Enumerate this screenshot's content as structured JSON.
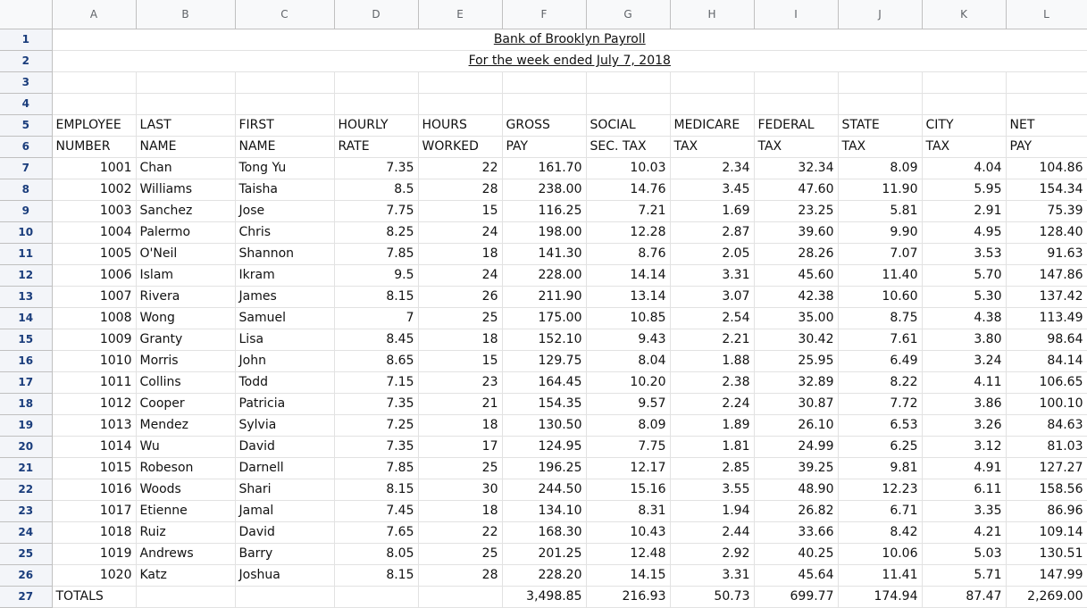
{
  "columns": [
    "A",
    "B",
    "C",
    "D",
    "E",
    "F",
    "G",
    "H",
    "I",
    "J",
    "K",
    "L"
  ],
  "rowNumbers": [
    "1",
    "2",
    "3",
    "4",
    "5",
    "6",
    "7",
    "8",
    "9",
    "10",
    "11",
    "12",
    "13",
    "14",
    "15",
    "16",
    "17",
    "18",
    "19",
    "20",
    "21",
    "22",
    "23",
    "24",
    "25",
    "26",
    "27"
  ],
  "title": "Bank of Brooklyn Payroll",
  "subtitle": "For the week  ended July  7, 2018",
  "headers": {
    "line1": [
      "EMPLOYEE",
      "LAST",
      "FIRST",
      "HOURLY",
      "HOURS",
      "GROSS",
      "SOCIAL",
      "MEDICARE",
      "FEDERAL",
      "STATE",
      "CITY",
      "NET"
    ],
    "line2": [
      "NUMBER",
      "NAME",
      "NAME",
      "RATE",
      "WORKED",
      "PAY",
      "SEC. TAX",
      "TAX",
      "TAX",
      "TAX",
      "TAX",
      "PAY"
    ]
  },
  "employees": [
    [
      "1001",
      "Chan",
      "Tong Yu",
      "7.35",
      "22",
      "161.70",
      "10.03",
      "2.34",
      "32.34",
      "8.09",
      "4.04",
      "104.86"
    ],
    [
      "1002",
      "Williams",
      "Taisha",
      "8.5",
      "28",
      "238.00",
      "14.76",
      "3.45",
      "47.60",
      "11.90",
      "5.95",
      "154.34"
    ],
    [
      "1003",
      "Sanchez",
      "Jose",
      "7.75",
      "15",
      "116.25",
      "7.21",
      "1.69",
      "23.25",
      "5.81",
      "2.91",
      "75.39"
    ],
    [
      "1004",
      "Palermo",
      "Chris",
      "8.25",
      "24",
      "198.00",
      "12.28",
      "2.87",
      "39.60",
      "9.90",
      "4.95",
      "128.40"
    ],
    [
      "1005",
      "O'Neil",
      "Shannon",
      "7.85",
      "18",
      "141.30",
      "8.76",
      "2.05",
      "28.26",
      "7.07",
      "3.53",
      "91.63"
    ],
    [
      "1006",
      "Islam",
      "Ikram",
      "9.5",
      "24",
      "228.00",
      "14.14",
      "3.31",
      "45.60",
      "11.40",
      "5.70",
      "147.86"
    ],
    [
      "1007",
      "Rivera",
      "James",
      "8.15",
      "26",
      "211.90",
      "13.14",
      "3.07",
      "42.38",
      "10.60",
      "5.30",
      "137.42"
    ],
    [
      "1008",
      "Wong",
      "Samuel",
      "7",
      "25",
      "175.00",
      "10.85",
      "2.54",
      "35.00",
      "8.75",
      "4.38",
      "113.49"
    ],
    [
      "1009",
      "Granty",
      "Lisa",
      "8.45",
      "18",
      "152.10",
      "9.43",
      "2.21",
      "30.42",
      "7.61",
      "3.80",
      "98.64"
    ],
    [
      "1010",
      "Morris",
      "John",
      "8.65",
      "15",
      "129.75",
      "8.04",
      "1.88",
      "25.95",
      "6.49",
      "3.24",
      "84.14"
    ],
    [
      "1011",
      "Collins",
      "Todd",
      "7.15",
      "23",
      "164.45",
      "10.20",
      "2.38",
      "32.89",
      "8.22",
      "4.11",
      "106.65"
    ],
    [
      "1012",
      "Cooper",
      "Patricia",
      "7.35",
      "21",
      "154.35",
      "9.57",
      "2.24",
      "30.87",
      "7.72",
      "3.86",
      "100.10"
    ],
    [
      "1013",
      "Mendez",
      "Sylvia",
      "7.25",
      "18",
      "130.50",
      "8.09",
      "1.89",
      "26.10",
      "6.53",
      "3.26",
      "84.63"
    ],
    [
      "1014",
      "Wu",
      "David",
      "7.35",
      "17",
      "124.95",
      "7.75",
      "1.81",
      "24.99",
      "6.25",
      "3.12",
      "81.03"
    ],
    [
      "1015",
      "Robeson",
      "Darnell",
      "7.85",
      "25",
      "196.25",
      "12.17",
      "2.85",
      "39.25",
      "9.81",
      "4.91",
      "127.27"
    ],
    [
      "1016",
      "Woods",
      "Shari",
      "8.15",
      "30",
      "244.50",
      "15.16",
      "3.55",
      "48.90",
      "12.23",
      "6.11",
      "158.56"
    ],
    [
      "1017",
      "Etienne",
      "Jamal",
      "7.45",
      "18",
      "134.10",
      "8.31",
      "1.94",
      "26.82",
      "6.71",
      "3.35",
      "86.96"
    ],
    [
      "1018",
      "Ruiz",
      "David",
      "7.65",
      "22",
      "168.30",
      "10.43",
      "2.44",
      "33.66",
      "8.42",
      "4.21",
      "109.14"
    ],
    [
      "1019",
      "Andrews",
      "Barry",
      "8.05",
      "25",
      "201.25",
      "12.48",
      "2.92",
      "40.25",
      "10.06",
      "5.03",
      "130.51"
    ],
    [
      "1020",
      "Katz",
      "Joshua",
      "8.15",
      "28",
      "228.20",
      "14.15",
      "3.31",
      "45.64",
      "11.41",
      "5.71",
      "147.99"
    ]
  ],
  "totals": [
    "TOTALS",
    "",
    "",
    "",
    "",
    "3,498.85",
    "216.93",
    "50.73",
    "699.77",
    "174.94",
    "87.47",
    "2,269.00"
  ],
  "colors": {
    "rowHeaderText": "#1a3d7c",
    "headerBg": "#f8f9fa",
    "gridLine": "#e2e2e2"
  }
}
